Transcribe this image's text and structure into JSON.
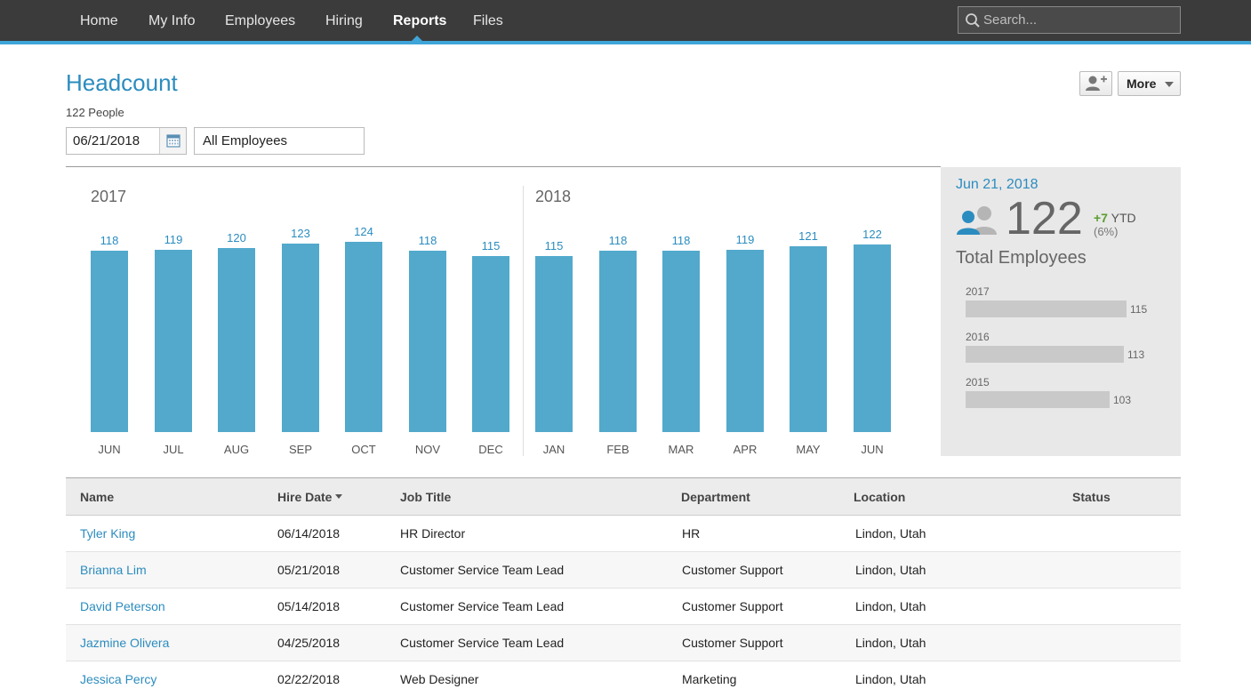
{
  "nav": {
    "items": [
      "Home",
      "My Info",
      "Employees",
      "Hiring",
      "Reports",
      "Files"
    ],
    "active": "Reports",
    "search_placeholder": "Search..."
  },
  "header": {
    "title": "Headcount",
    "people_count": "122 People",
    "more_label": "More",
    "date_value": "06/21/2018",
    "filter_value": "All Employees"
  },
  "chart_data": {
    "type": "bar",
    "title": "Headcount",
    "groups": [
      {
        "year": "2017",
        "categories": [
          "JUN",
          "JUL",
          "AUG",
          "SEP",
          "OCT",
          "NOV",
          "DEC"
        ],
        "values": [
          118,
          119,
          120,
          123,
          124,
          118,
          115
        ]
      },
      {
        "year": "2018",
        "categories": [
          "JAN",
          "FEB",
          "MAR",
          "APR",
          "MAY",
          "JUN"
        ],
        "values": [
          115,
          118,
          118,
          119,
          121,
          122
        ]
      }
    ],
    "ylim": [
      0,
      124
    ]
  },
  "summary": {
    "date": "Jun 21, 2018",
    "total": "122",
    "ytd_change": "+7",
    "ytd_label": "YTD",
    "ytd_pct": "(6%)",
    "total_label": "Total Employees",
    "history": [
      {
        "year": "2017",
        "value": 115
      },
      {
        "year": "2016",
        "value": 113
      },
      {
        "year": "2015",
        "value": 103
      }
    ]
  },
  "table": {
    "columns": [
      "Name",
      "Hire Date",
      "Job Title",
      "Department",
      "Location",
      "Status"
    ],
    "rows": [
      {
        "name": "Tyler King",
        "hire_date": "06/14/2018",
        "job_title": "HR Director",
        "department": "HR",
        "location": "Lindon, Utah",
        "status": ""
      },
      {
        "name": "Brianna Lim",
        "hire_date": "05/21/2018",
        "job_title": "Customer Service Team Lead",
        "department": "Customer Support",
        "location": "Lindon, Utah",
        "status": ""
      },
      {
        "name": "David Peterson",
        "hire_date": "05/14/2018",
        "job_title": "Customer Service Team Lead",
        "department": "Customer Support",
        "location": "Lindon, Utah",
        "status": ""
      },
      {
        "name": "Jazmine Olivera",
        "hire_date": "04/25/2018",
        "job_title": "Customer Service Team Lead",
        "department": "Customer Support",
        "location": "Lindon, Utah",
        "status": ""
      },
      {
        "name": "Jessica Percy",
        "hire_date": "02/22/2018",
        "job_title": "Web Designer",
        "department": "Marketing",
        "location": "Lindon, Utah",
        "status": ""
      }
    ]
  },
  "colors": {
    "accent": "#2b8cbf",
    "bar": "#52a9cc",
    "nav_bg": "#3b3b3b",
    "ytd_positive": "#5a9e2f"
  }
}
